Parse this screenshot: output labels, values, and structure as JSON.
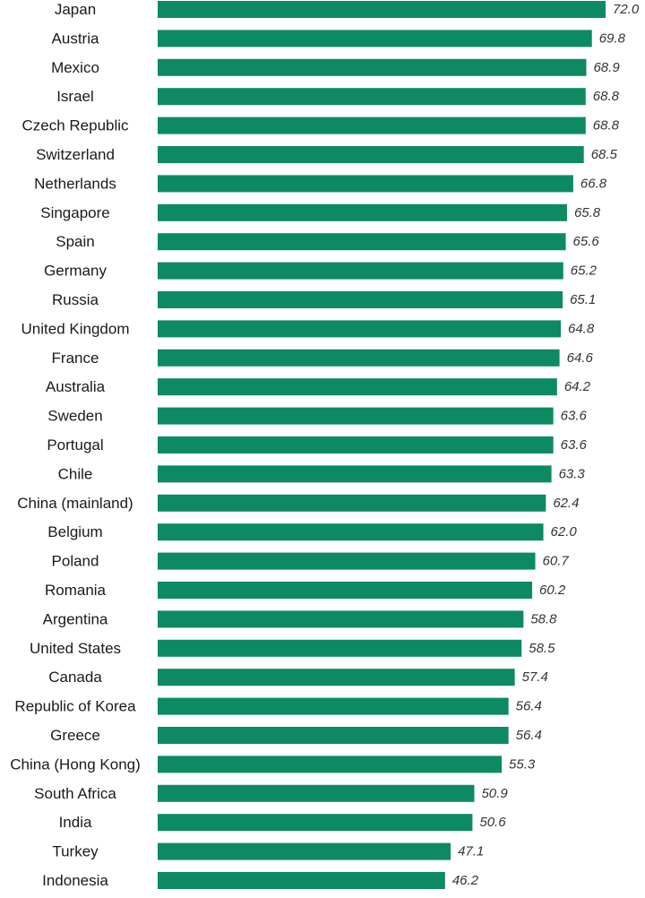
{
  "chart_data": {
    "type": "bar",
    "orientation": "horizontal",
    "categories": [
      "Japan",
      "Austria",
      "Mexico",
      "Israel",
      "Czech Republic",
      "Switzerland",
      "Netherlands",
      "Singapore",
      "Spain",
      "Germany",
      "Russia",
      "United Kingdom",
      "France",
      "Australia",
      "Sweden",
      "Portugal",
      "Chile",
      "China (mainland)",
      "Belgium",
      "Poland",
      "Romania",
      "Argentina",
      "United States",
      "Canada",
      "Republic of Korea",
      "Greece",
      "China (Hong Kong)",
      "South Africa",
      "India",
      "Turkey",
      "Indonesia"
    ],
    "values": [
      72.0,
      69.8,
      68.9,
      68.8,
      68.8,
      68.5,
      66.8,
      65.8,
      65.6,
      65.2,
      65.1,
      64.8,
      64.6,
      64.2,
      63.6,
      63.6,
      63.3,
      62.4,
      62.0,
      60.7,
      60.2,
      58.8,
      58.5,
      57.4,
      56.4,
      56.4,
      55.3,
      50.9,
      50.6,
      47.1,
      46.2
    ],
    "value_labels": [
      "72.0",
      "69.8",
      "68.9",
      "68.8",
      "68.8",
      "68.5",
      "66.8",
      "65.8",
      "65.6",
      "65.2",
      "65.1",
      "64.8",
      "64.6",
      "64.2",
      "63.6",
      "63.6",
      "63.3",
      "62.4",
      "62.0",
      "60.7",
      "60.2",
      "58.8",
      "58.5",
      "57.4",
      "56.4",
      "56.4",
      "55.3",
      "50.9",
      "50.6",
      "47.1",
      "46.2"
    ],
    "xlim": [
      0,
      72
    ],
    "bar_color": "#0d8a63",
    "grid": false,
    "legend": "none",
    "title": "",
    "xlabel": "",
    "ylabel": ""
  }
}
